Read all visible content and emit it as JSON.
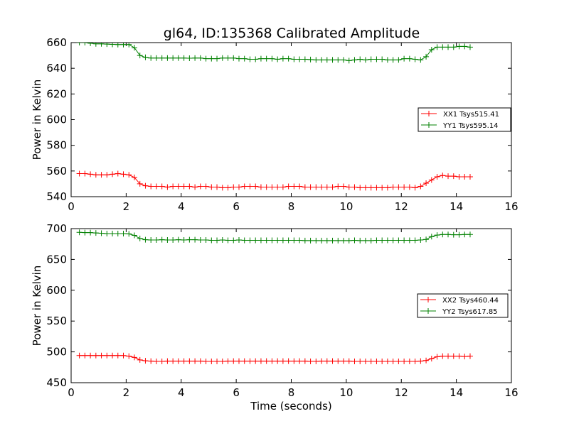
{
  "title": "gl64, ID:135368 Calibrated Amplitude",
  "chart_data": [
    {
      "type": "line",
      "ylabel": "Power in Kelvin",
      "xlabel": "",
      "xlim": [
        0,
        16
      ],
      "ylim": [
        540,
        660
      ],
      "xticks": [
        0,
        2,
        4,
        6,
        8,
        10,
        12,
        14,
        16
      ],
      "yticks": [
        540,
        560,
        580,
        600,
        620,
        640,
        660
      ],
      "legend_position": "right",
      "x": [
        0.3,
        0.5,
        0.7,
        0.9,
        1.1,
        1.3,
        1.5,
        1.7,
        1.9,
        2.1,
        2.3,
        2.5,
        2.7,
        2.9,
        3.1,
        3.3,
        3.5,
        3.7,
        3.9,
        4.1,
        4.3,
        4.5,
        4.7,
        4.9,
        5.1,
        5.3,
        5.5,
        5.7,
        5.9,
        6.1,
        6.3,
        6.5,
        6.7,
        6.9,
        7.1,
        7.3,
        7.5,
        7.7,
        7.9,
        8.1,
        8.3,
        8.5,
        8.7,
        8.9,
        9.1,
        9.3,
        9.5,
        9.7,
        9.9,
        10.1,
        10.3,
        10.5,
        10.7,
        10.9,
        11.1,
        11.3,
        11.5,
        11.7,
        11.9,
        12.1,
        12.3,
        12.5,
        12.7,
        12.9,
        13.1,
        13.3,
        13.5,
        13.7,
        13.9,
        14.1,
        14.3,
        14.5
      ],
      "series": [
        {
          "name": "XX1 Tsys515.41",
          "color": "#ff0000",
          "values": [
            558,
            558,
            557.5,
            557,
            557,
            557,
            557.5,
            558,
            557.5,
            557,
            555,
            550,
            548.5,
            548,
            548,
            548,
            547.5,
            548,
            548,
            548,
            548,
            547.5,
            548,
            548,
            547.5,
            547.5,
            547,
            547,
            547.5,
            547.5,
            548,
            548,
            548,
            547.5,
            547.5,
            547.5,
            547.5,
            547.5,
            548,
            548,
            548,
            547.5,
            547.5,
            547.5,
            547.5,
            547.5,
            547.5,
            548,
            548,
            547.5,
            547.5,
            547,
            547,
            547,
            547,
            547,
            547,
            547.5,
            547.5,
            547.5,
            547.5,
            547,
            548,
            550.5,
            553,
            555.5,
            556.5,
            556,
            556,
            555.5,
            555.5,
            555.5
          ]
        },
        {
          "name": "YY1 Tsys595.14",
          "color": "#008000",
          "values": [
            660,
            660,
            659.5,
            659,
            659,
            658.8,
            658.6,
            658.5,
            658.5,
            658.5,
            656,
            650,
            648.5,
            648,
            648,
            648,
            648,
            648,
            648,
            648,
            647.8,
            648,
            648,
            647.5,
            647.5,
            647.5,
            648,
            648,
            648,
            647.5,
            647.5,
            647,
            647,
            647.5,
            647.5,
            647.5,
            647,
            647.5,
            647.5,
            647,
            647,
            647,
            646.8,
            646.5,
            646.5,
            646.5,
            646.5,
            646.5,
            646.5,
            646,
            646.5,
            647,
            646.5,
            647,
            647,
            647,
            646.5,
            646.5,
            646.5,
            647.5,
            647.5,
            647,
            646.5,
            649,
            654.5,
            656.5,
            656.5,
            656.5,
            656.5,
            657,
            657,
            656.5
          ]
        }
      ]
    },
    {
      "type": "line",
      "ylabel": "Power in Kelvin",
      "xlabel": "Time (seconds)",
      "xlim": [
        0,
        16
      ],
      "ylim": [
        450,
        700
      ],
      "xticks": [
        0,
        2,
        4,
        6,
        8,
        10,
        12,
        14,
        16
      ],
      "yticks": [
        450,
        500,
        550,
        600,
        650,
        700
      ],
      "legend_position": "right",
      "x": [
        0.3,
        0.5,
        0.7,
        0.9,
        1.1,
        1.3,
        1.5,
        1.7,
        1.9,
        2.1,
        2.3,
        2.5,
        2.7,
        2.9,
        3.1,
        3.3,
        3.5,
        3.7,
        3.9,
        4.1,
        4.3,
        4.5,
        4.7,
        4.9,
        5.1,
        5.3,
        5.5,
        5.7,
        5.9,
        6.1,
        6.3,
        6.5,
        6.7,
        6.9,
        7.1,
        7.3,
        7.5,
        7.7,
        7.9,
        8.1,
        8.3,
        8.5,
        8.7,
        8.9,
        9.1,
        9.3,
        9.5,
        9.7,
        9.9,
        10.1,
        10.3,
        10.5,
        10.7,
        10.9,
        11.1,
        11.3,
        11.5,
        11.7,
        11.9,
        12.1,
        12.3,
        12.5,
        12.7,
        12.9,
        13.1,
        13.3,
        13.5,
        13.7,
        13.9,
        14.1,
        14.3,
        14.5
      ],
      "series": [
        {
          "name": "XX2 Tsys460.44",
          "color": "#ff0000",
          "values": [
            494,
            494,
            494,
            494,
            494,
            494,
            494,
            494,
            494,
            493,
            491,
            487,
            485.5,
            485,
            484.5,
            484.5,
            485,
            485,
            485,
            485,
            485,
            485,
            485,
            484.5,
            484.5,
            484.5,
            484.5,
            485,
            485,
            485,
            485,
            485,
            485,
            485,
            485,
            485,
            485,
            485,
            485,
            485,
            485,
            485,
            484.5,
            484.5,
            485,
            485,
            485,
            485,
            485,
            485,
            484.5,
            484.5,
            484.5,
            484.5,
            484.5,
            484.5,
            484.5,
            484.5,
            484.5,
            484.5,
            484.5,
            484.5,
            485,
            486,
            489,
            492,
            493,
            493,
            493,
            493,
            492.5,
            493
          ]
        },
        {
          "name": "YY2 Tsys617.85",
          "color": "#008000",
          "values": [
            694,
            693.5,
            693.5,
            693,
            692.5,
            692,
            692,
            692,
            692,
            691.5,
            689,
            684,
            682,
            681.5,
            681.5,
            682,
            681.5,
            681.5,
            682,
            681.5,
            682,
            682,
            681.5,
            681.5,
            681,
            681,
            681.5,
            681,
            681,
            681.5,
            681,
            681,
            681,
            681,
            681,
            681,
            681,
            681,
            681,
            681,
            681,
            680.5,
            680.5,
            680.5,
            680.5,
            680.5,
            680.5,
            680.5,
            680.5,
            680.5,
            681,
            680.5,
            680.5,
            680.5,
            681,
            681,
            681,
            681,
            681,
            681,
            681,
            681,
            681.5,
            682.5,
            687,
            689.5,
            690.5,
            690.5,
            690,
            690,
            690.5,
            690.5
          ]
        }
      ]
    }
  ]
}
